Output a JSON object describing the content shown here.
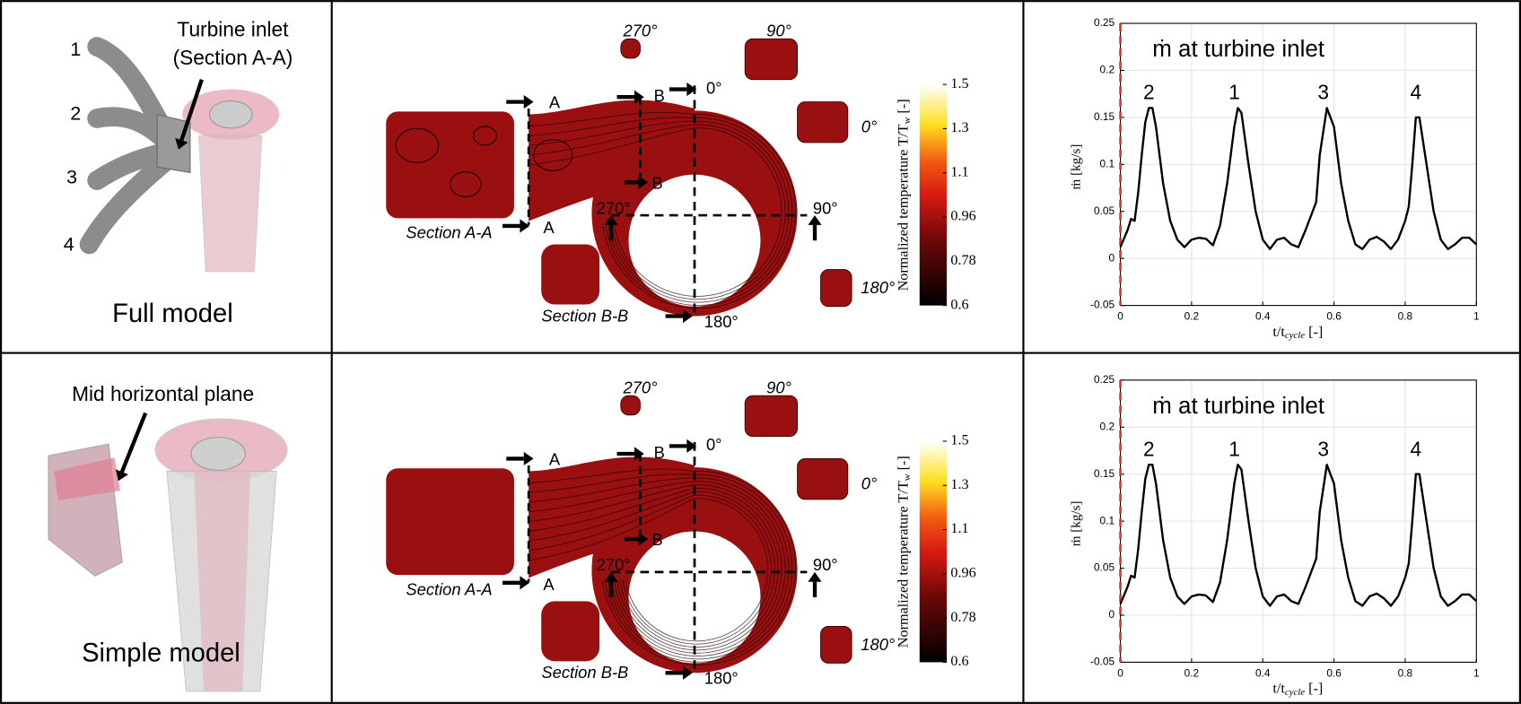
{
  "rows": [
    {
      "model": {
        "label": "Full model",
        "callouts": [
          "Turbine inlet",
          "(Section A-A)"
        ],
        "inlet_numbers": [
          "1",
          "2",
          "3",
          "4"
        ]
      },
      "contour": {
        "section_labels": [
          "Section A-A",
          "Section B-B"
        ],
        "cut_labels": [
          "A",
          "A",
          "B",
          "B"
        ],
        "angles": [
          "0°",
          "90°",
          "180°",
          "270°"
        ],
        "thumb_angles": [
          "270°",
          "90°",
          "0°",
          "180°"
        ],
        "colorbar": {
          "label": "Normalized temperature T/T",
          "label_sub": "w",
          "label_suffix": " [-]",
          "ticks": [
            0.6,
            0.78,
            0.96,
            1.1,
            1.3,
            1.5
          ]
        }
      },
      "chart": {
        "type": "line",
        "title": "ṁ at turbine inlet",
        "ylabel": "ṁ [kg/s]",
        "xlabel": "t/t",
        "xlabel_sub": "cycle",
        "xlabel_suffix": " [-]",
        "x": [
          0,
          0.02,
          0.03,
          0.04,
          0.05,
          0.06,
          0.07,
          0.08,
          0.09,
          0.1,
          0.12,
          0.14,
          0.16,
          0.18,
          0.2,
          0.22,
          0.24,
          0.26,
          0.28,
          0.3,
          0.32,
          0.33,
          0.34,
          0.36,
          0.38,
          0.4,
          0.42,
          0.44,
          0.46,
          0.48,
          0.5,
          0.52,
          0.54,
          0.55,
          0.56,
          0.58,
          0.6,
          0.62,
          0.64,
          0.66,
          0.68,
          0.7,
          0.72,
          0.74,
          0.76,
          0.78,
          0.8,
          0.81,
          0.82,
          0.83,
          0.84,
          0.86,
          0.88,
          0.9,
          0.92,
          0.94,
          0.96,
          0.98,
          1
        ],
        "values": [
          0.012,
          0.03,
          0.042,
          0.04,
          0.07,
          0.11,
          0.145,
          0.16,
          0.16,
          0.14,
          0.08,
          0.04,
          0.02,
          0.012,
          0.02,
          0.022,
          0.021,
          0.014,
          0.035,
          0.08,
          0.14,
          0.16,
          0.155,
          0.1,
          0.05,
          0.02,
          0.01,
          0.02,
          0.022,
          0.015,
          0.012,
          0.03,
          0.05,
          0.06,
          0.11,
          0.16,
          0.14,
          0.08,
          0.04,
          0.015,
          0.01,
          0.02,
          0.023,
          0.018,
          0.01,
          0.02,
          0.04,
          0.055,
          0.1,
          0.15,
          0.15,
          0.1,
          0.05,
          0.02,
          0.01,
          0.015,
          0.022,
          0.022,
          0.015
        ],
        "color": "#000000",
        "annotations": [
          {
            "text": "2",
            "x": 0.08,
            "y": 0.175
          },
          {
            "text": "1",
            "x": 0.32,
            "y": 0.175
          },
          {
            "text": "3",
            "x": 0.57,
            "y": 0.175
          },
          {
            "text": "4",
            "x": 0.83,
            "y": 0.175
          }
        ],
        "vline": {
          "x": 0,
          "color": "#e8312f"
        },
        "xlim": [
          0,
          1
        ],
        "ylim": [
          -0.05,
          0.25
        ],
        "xticks": [
          0,
          0.2,
          0.4,
          0.6,
          0.8,
          1
        ],
        "yticks": [
          -0.05,
          0,
          0.05,
          0.1,
          0.15,
          0.2,
          0.25
        ],
        "grid": true
      }
    },
    {
      "model": {
        "label": "Simple model",
        "callouts": [
          "Mid horizontal plane"
        ],
        "inlet_numbers": []
      },
      "contour": {
        "section_labels": [
          "Section A-A",
          "Section B-B"
        ],
        "cut_labels": [
          "A",
          "A",
          "B",
          "B"
        ],
        "angles": [
          "0°",
          "90°",
          "180°",
          "270°"
        ],
        "thumb_angles": [
          "270°",
          "90°",
          "0°",
          "180°"
        ],
        "colorbar": {
          "label": "Normalized temperature T/T",
          "label_sub": "w",
          "label_suffix": " [-]",
          "ticks": [
            0.6,
            0.78,
            0.96,
            1.1,
            1.3,
            1.5
          ]
        }
      },
      "chart": {
        "type": "line",
        "title": "ṁ at turbine inlet",
        "ylabel": "ṁ [kg/s]",
        "xlabel": "t/t",
        "xlabel_sub": "cycle",
        "xlabel_suffix": " [-]",
        "x": [
          0,
          0.02,
          0.03,
          0.04,
          0.05,
          0.06,
          0.07,
          0.08,
          0.09,
          0.1,
          0.12,
          0.14,
          0.16,
          0.18,
          0.2,
          0.22,
          0.24,
          0.26,
          0.28,
          0.3,
          0.32,
          0.33,
          0.34,
          0.36,
          0.38,
          0.4,
          0.42,
          0.44,
          0.46,
          0.48,
          0.5,
          0.52,
          0.54,
          0.55,
          0.56,
          0.58,
          0.6,
          0.62,
          0.64,
          0.66,
          0.68,
          0.7,
          0.72,
          0.74,
          0.76,
          0.78,
          0.8,
          0.81,
          0.82,
          0.83,
          0.84,
          0.86,
          0.88,
          0.9,
          0.92,
          0.94,
          0.96,
          0.98,
          1
        ],
        "values": [
          0.012,
          0.03,
          0.042,
          0.04,
          0.07,
          0.11,
          0.145,
          0.16,
          0.16,
          0.14,
          0.08,
          0.04,
          0.02,
          0.012,
          0.02,
          0.022,
          0.021,
          0.014,
          0.035,
          0.08,
          0.14,
          0.16,
          0.155,
          0.1,
          0.05,
          0.02,
          0.01,
          0.02,
          0.022,
          0.015,
          0.012,
          0.03,
          0.05,
          0.06,
          0.11,
          0.16,
          0.14,
          0.08,
          0.04,
          0.015,
          0.01,
          0.02,
          0.023,
          0.018,
          0.01,
          0.02,
          0.04,
          0.055,
          0.1,
          0.15,
          0.15,
          0.1,
          0.05,
          0.02,
          0.01,
          0.015,
          0.022,
          0.022,
          0.015
        ],
        "color": "#000000",
        "annotations": [
          {
            "text": "2",
            "x": 0.08,
            "y": 0.175
          },
          {
            "text": "1",
            "x": 0.32,
            "y": 0.175
          },
          {
            "text": "3",
            "x": 0.57,
            "y": 0.175
          },
          {
            "text": "4",
            "x": 0.83,
            "y": 0.175
          }
        ],
        "vline": {
          "x": 0,
          "color": "#e8312f"
        },
        "xlim": [
          0,
          1
        ],
        "ylim": [
          -0.05,
          0.25
        ],
        "xticks": [
          0,
          0.2,
          0.4,
          0.6,
          0.8,
          1
        ],
        "yticks": [
          -0.05,
          0,
          0.05,
          0.1,
          0.15,
          0.2,
          0.25
        ],
        "grid": true
      }
    }
  ]
}
